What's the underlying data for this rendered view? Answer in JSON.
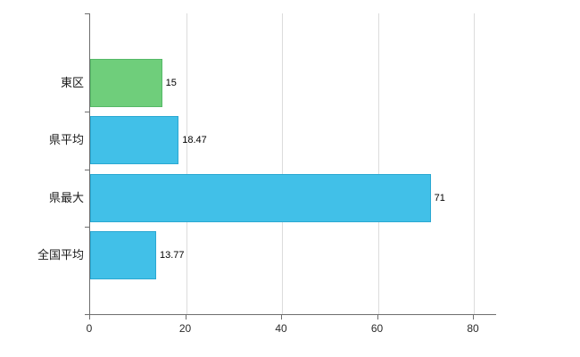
{
  "chart_data": {
    "type": "bar",
    "orientation": "horizontal",
    "title": "",
    "xlabel": "",
    "ylabel": "",
    "categories": [
      "東区",
      "県平均",
      "県最大",
      "全国平均"
    ],
    "values": [
      15,
      18.47,
      71,
      13.77
    ],
    "value_labels": [
      "15",
      "18.47",
      "71",
      "13.77"
    ],
    "bar_colors": [
      "#6fce7b",
      "#41c0e8",
      "#41c0e8",
      "#41c0e8"
    ],
    "bar_border_colors": [
      "#55b967",
      "#2aa8d2",
      "#2aa8d2",
      "#2aa8d2"
    ],
    "x_ticks": [
      0,
      20,
      40,
      60,
      80
    ],
    "x_tick_labels": [
      "0",
      "20",
      "40",
      "60",
      "80"
    ],
    "xlim": [
      0,
      84.7
    ],
    "grid": true,
    "legend": false
  },
  "colors": {
    "background": "#ffffff",
    "grid": "#dcdcdc",
    "axis": "#6e6e6e",
    "green_bar": "#6fce7b",
    "blue_bar": "#41c0e8"
  }
}
